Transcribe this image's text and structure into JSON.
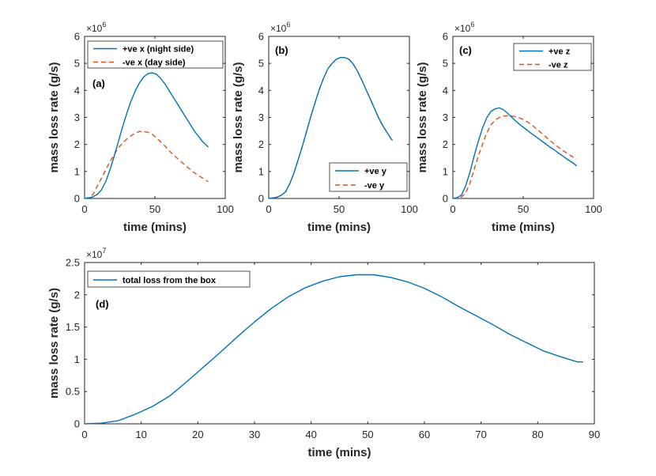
{
  "chart_data": [
    {
      "type": "line",
      "panel_label": "(a)",
      "xlabel": "time (mins)",
      "ylabel": "mass loss rate (g/s)",
      "xlim": [
        0,
        100
      ],
      "ylim": [
        0,
        6
      ],
      "xticks": [
        "0",
        "50",
        "100"
      ],
      "yticks": [
        "0",
        "1",
        "2",
        "3",
        "4",
        "5",
        "6"
      ],
      "yexponent": "6",
      "legend_position": "top-right",
      "series": [
        {
          "name": "+ve x (night side)",
          "color": "#0072bd",
          "style": "solid",
          "x": [
            0,
            3,
            6,
            9,
            12,
            15,
            18,
            21,
            24,
            27,
            30,
            33,
            36,
            39,
            42,
            45,
            48,
            51,
            54,
            57,
            60,
            63,
            66,
            69,
            72,
            75,
            78,
            81,
            84,
            87,
            88
          ],
          "y": [
            0,
            0.02,
            0.06,
            0.15,
            0.32,
            0.62,
            1.05,
            1.55,
            2.1,
            2.65,
            3.15,
            3.6,
            3.98,
            4.28,
            4.5,
            4.62,
            4.65,
            4.6,
            4.45,
            4.25,
            4.0,
            3.75,
            3.5,
            3.25,
            3.0,
            2.75,
            2.5,
            2.3,
            2.1,
            1.95,
            1.9
          ]
        },
        {
          "name": "-ve x (day side)",
          "color": "#d95319",
          "style": "dashed",
          "x": [
            0,
            3,
            6,
            9,
            12,
            15,
            18,
            21,
            24,
            27,
            30,
            33,
            36,
            39,
            42,
            45,
            48,
            51,
            54,
            57,
            60,
            63,
            66,
            69,
            72,
            75,
            78,
            81,
            84,
            87,
            88
          ],
          "y": [
            0,
            0.03,
            0.15,
            0.45,
            0.75,
            1.05,
            1.35,
            1.62,
            1.88,
            2.05,
            2.2,
            2.32,
            2.42,
            2.48,
            2.48,
            2.45,
            2.38,
            2.25,
            2.1,
            1.95,
            1.78,
            1.62,
            1.48,
            1.35,
            1.2,
            1.08,
            0.95,
            0.85,
            0.75,
            0.65,
            0.62
          ]
        }
      ]
    },
    {
      "type": "line",
      "panel_label": "(b)",
      "xlabel": "time (mins)",
      "ylabel": "mass loss rate (g/s)",
      "xlim": [
        0,
        100
      ],
      "ylim": [
        0,
        6
      ],
      "xticks": [
        "0",
        "50",
        "100"
      ],
      "yticks": [
        "0",
        "1",
        "2",
        "3",
        "4",
        "5",
        "6"
      ],
      "yexponent": "6",
      "legend_position": "bottom-right",
      "series": [
        {
          "name": "+ve y",
          "color": "#0072bd",
          "style": "solid",
          "x": [
            0,
            3,
            6,
            9,
            12,
            15,
            18,
            21,
            24,
            27,
            30,
            33,
            36,
            39,
            42,
            45,
            48,
            51,
            54,
            57,
            60,
            63,
            66,
            69,
            72,
            75,
            78,
            81,
            84,
            87,
            88
          ],
          "y": [
            0,
            0.02,
            0.05,
            0.12,
            0.25,
            0.55,
            0.95,
            1.45,
            1.95,
            2.5,
            3.05,
            3.55,
            4.05,
            4.45,
            4.8,
            5.0,
            5.15,
            5.22,
            5.22,
            5.15,
            4.98,
            4.72,
            4.4,
            4.05,
            3.7,
            3.35,
            3.0,
            2.7,
            2.45,
            2.2,
            2.15
          ]
        },
        {
          "name": "-ve y",
          "color": "#d95319",
          "style": "dashed",
          "x": [
            0,
            3,
            6,
            9,
            12,
            15,
            18,
            21,
            24,
            27,
            30,
            33,
            36,
            39,
            42,
            45,
            48,
            51,
            54,
            57,
            60,
            63,
            66,
            69,
            72,
            75,
            78,
            81,
            84,
            87,
            88
          ],
          "y": [
            0,
            0.02,
            0.05,
            0.12,
            0.25,
            0.55,
            0.95,
            1.45,
            1.95,
            2.5,
            3.05,
            3.55,
            4.05,
            4.45,
            4.8,
            5.0,
            5.15,
            5.22,
            5.22,
            5.15,
            4.98,
            4.72,
            4.4,
            4.05,
            3.7,
            3.35,
            3.0,
            2.7,
            2.45,
            2.2,
            2.15
          ]
        }
      ]
    },
    {
      "type": "line",
      "panel_label": "(c)",
      "xlabel": "time (mins)",
      "ylabel": "mass loss rate (g/s)",
      "xlim": [
        0,
        100
      ],
      "ylim": [
        0,
        6
      ],
      "xticks": [
        "0",
        "50",
        "100"
      ],
      "yticks": [
        "0",
        "1",
        "2",
        "3",
        "4",
        "5",
        "6"
      ],
      "yexponent": "6",
      "legend_position": "top-right",
      "series": [
        {
          "name": "+ve z",
          "color": "#0072bd",
          "style": "solid",
          "x": [
            0,
            3,
            6,
            9,
            12,
            15,
            18,
            21,
            24,
            27,
            30,
            33,
            36,
            39,
            42,
            45,
            48,
            51,
            54,
            57,
            60,
            63,
            66,
            69,
            72,
            75,
            78,
            81,
            84,
            87,
            88
          ],
          "y": [
            0,
            0.03,
            0.12,
            0.45,
            0.95,
            1.55,
            2.1,
            2.6,
            2.98,
            3.22,
            3.32,
            3.35,
            3.28,
            3.15,
            3.0,
            2.85,
            2.72,
            2.6,
            2.48,
            2.36,
            2.25,
            2.13,
            2.02,
            1.9,
            1.8,
            1.68,
            1.58,
            1.46,
            1.36,
            1.25,
            1.2
          ]
        },
        {
          "name": "-ve z",
          "color": "#d95319",
          "style": "dashed",
          "x": [
            0,
            3,
            6,
            9,
            12,
            15,
            18,
            21,
            24,
            27,
            30,
            33,
            36,
            39,
            42,
            45,
            48,
            51,
            54,
            57,
            60,
            63,
            66,
            69,
            72,
            75,
            78,
            81,
            84,
            87,
            88
          ],
          "y": [
            0,
            0.02,
            0.05,
            0.2,
            0.55,
            1.05,
            1.55,
            2.0,
            2.42,
            2.72,
            2.9,
            3.0,
            3.05,
            3.06,
            3.05,
            3.02,
            2.97,
            2.9,
            2.8,
            2.68,
            2.55,
            2.42,
            2.28,
            2.15,
            2.02,
            1.9,
            1.78,
            1.68,
            1.58,
            1.48,
            1.45
          ]
        }
      ]
    },
    {
      "type": "line",
      "panel_label": "(d)",
      "xlabel": "time (mins)",
      "ylabel": "mass loss rate (g/s)",
      "xlim": [
        0,
        90
      ],
      "ylim": [
        0,
        2.5
      ],
      "xticks": [
        "0",
        "10",
        "20",
        "30",
        "40",
        "50",
        "60",
        "70",
        "80",
        "90"
      ],
      "yticks": [
        "0",
        "0.5",
        "1",
        "1.5",
        "2",
        "2.5"
      ],
      "yexponent": "7",
      "legend_position": "top-left",
      "series": [
        {
          "name": "total loss from the box",
          "color": "#0072bd",
          "style": "solid",
          "x": [
            0,
            3,
            6,
            9,
            12,
            15,
            18,
            21,
            24,
            27,
            30,
            33,
            36,
            39,
            42,
            45,
            48,
            51,
            54,
            57,
            60,
            63,
            66,
            69,
            72,
            75,
            78,
            81,
            84,
            87,
            88
          ],
          "y": [
            0,
            0.01,
            0.05,
            0.15,
            0.27,
            0.43,
            0.65,
            0.88,
            1.11,
            1.35,
            1.58,
            1.79,
            1.97,
            2.11,
            2.21,
            2.28,
            2.31,
            2.31,
            2.27,
            2.2,
            2.1,
            1.97,
            1.82,
            1.68,
            1.54,
            1.39,
            1.26,
            1.13,
            1.04,
            0.96,
            0.96
          ]
        }
      ]
    }
  ]
}
